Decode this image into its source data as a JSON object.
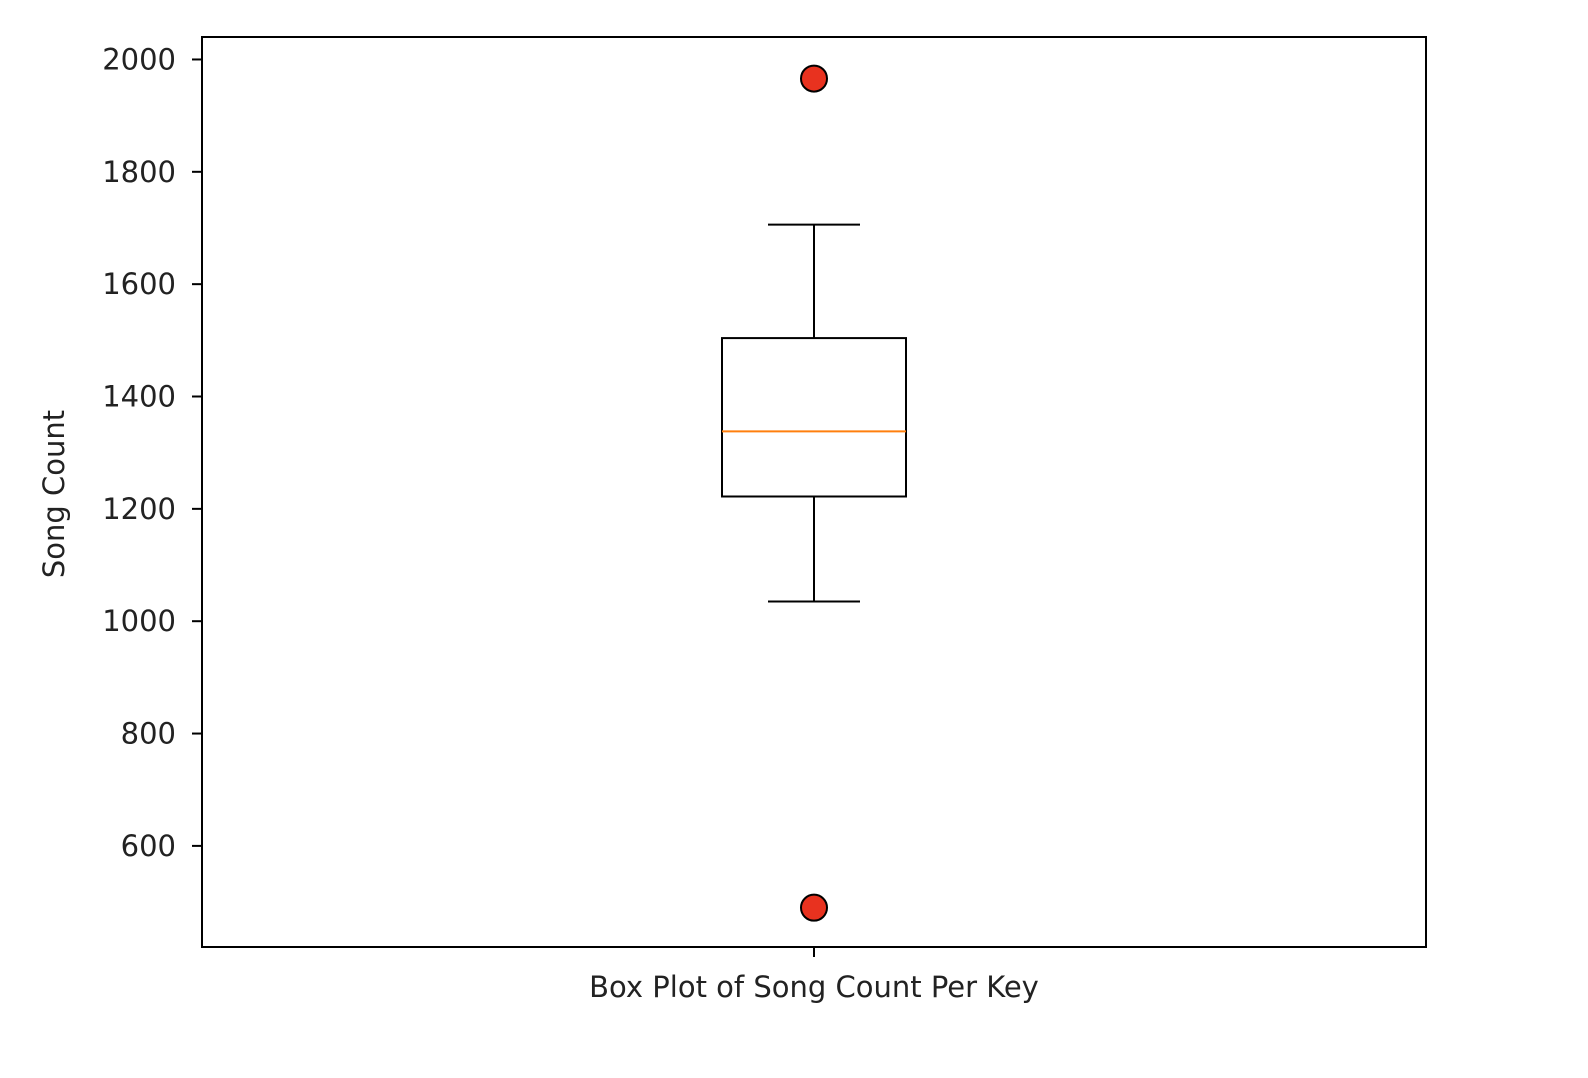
{
  "chart_data": {
    "type": "box",
    "title": "",
    "xlabel": "Box Plot of Song Count Per Key",
    "ylabel": "Song Count",
    "ylim": [
      420,
      2040
    ],
    "yticks": [
      600,
      800,
      1000,
      1200,
      1400,
      1600,
      1800,
      2000
    ],
    "grid": false,
    "legend": "none",
    "box": {
      "whisker_low": 1035,
      "q1": 1222,
      "median": 1338,
      "q3": 1504,
      "whisker_high": 1706
    },
    "outliers": [
      1966,
      490
    ],
    "colors": {
      "box": "#000000",
      "median": "#ff7f0e",
      "outlier_fill": "#e8321f",
      "outlier_edge": "#000000"
    }
  }
}
